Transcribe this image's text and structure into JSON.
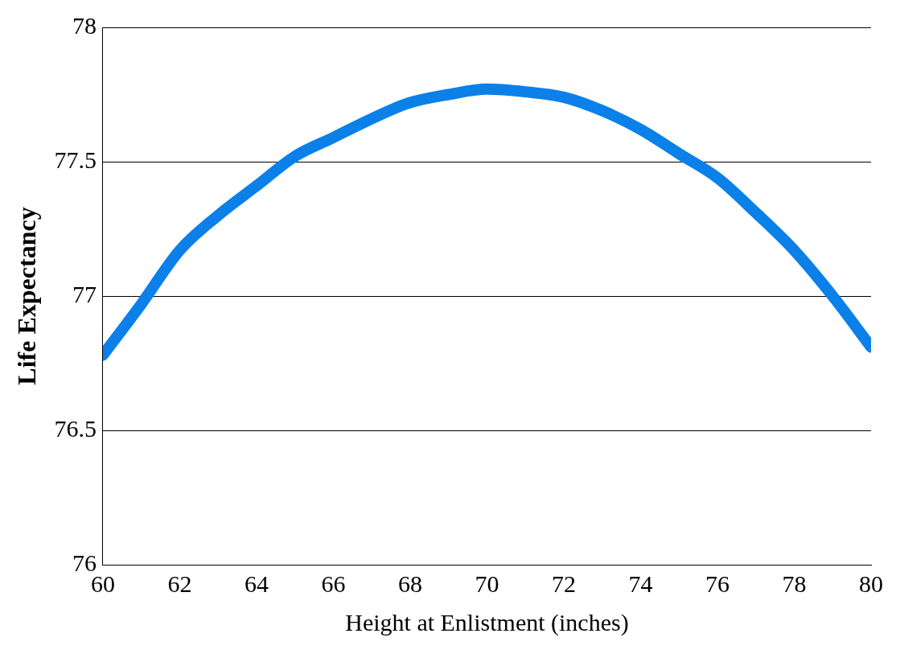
{
  "chart_data": {
    "type": "line",
    "xlabel": "Height at Enlistment (inches)",
    "ylabel": "Life Expectancy",
    "x": [
      60,
      61,
      62,
      63,
      64,
      65,
      66,
      67,
      68,
      69,
      70,
      71,
      72,
      73,
      74,
      75,
      76,
      77,
      78,
      79,
      80
    ],
    "series": [
      {
        "color": "#0a80e8",
        "values": [
          76.78,
          76.97,
          77.17,
          77.3,
          77.41,
          77.52,
          77.59,
          77.66,
          77.72,
          77.75,
          77.77,
          77.76,
          77.74,
          77.69,
          77.62,
          77.53,
          77.44,
          77.31,
          77.17,
          77.0,
          76.81
        ]
      }
    ],
    "xlim": [
      60,
      80
    ],
    "xticks": [
      60,
      62,
      64,
      66,
      68,
      70,
      72,
      74,
      76,
      78,
      80
    ],
    "ylim": [
      76,
      78
    ],
    "yticks": [
      76,
      76.5,
      77,
      77.5,
      78
    ],
    "grid": "y",
    "legend": false,
    "marker": "none",
    "line_style": "solid"
  }
}
